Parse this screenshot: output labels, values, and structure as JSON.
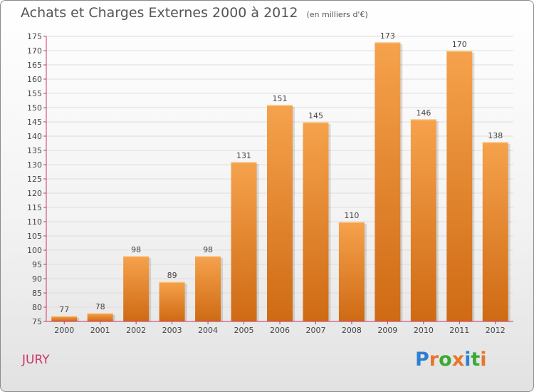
{
  "chart_data": {
    "type": "bar",
    "title": "Achats et Charges Externes 2000 à 2012",
    "subtitle": "(en milliers d'€)",
    "categories": [
      "2000",
      "2001",
      "2002",
      "2003",
      "2004",
      "2005",
      "2006",
      "2007",
      "2008",
      "2009",
      "2010",
      "2011",
      "2012"
    ],
    "values": [
      77,
      78,
      98,
      89,
      98,
      131,
      151,
      145,
      110,
      173,
      146,
      170,
      138
    ],
    "ylim": [
      75,
      175
    ],
    "yticks": [
      75,
      80,
      85,
      90,
      95,
      100,
      105,
      110,
      115,
      120,
      125,
      130,
      135,
      140,
      145,
      150,
      155,
      160,
      165,
      170,
      175
    ],
    "grid": true,
    "legend": "none",
    "bar_color_top": "#f6a24c",
    "bar_color_bottom": "#cf6a14",
    "axis_color": "#c8366a"
  },
  "commune": "JURY",
  "brand": {
    "letters": [
      "P",
      "r",
      "o",
      "x",
      "i",
      "t",
      "i"
    ],
    "colors": [
      "#2f7fd1",
      "#e8762b",
      "#3aaa35",
      "#e8762b",
      "#2f7fd1",
      "#3aaa35",
      "#e8762b"
    ]
  }
}
